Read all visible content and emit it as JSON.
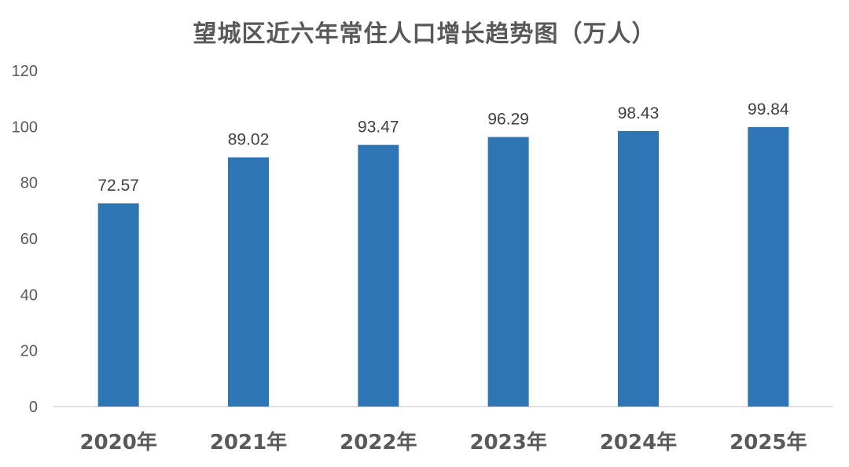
{
  "chart_data": {
    "type": "bar",
    "title": "望城区近六年常住人口增长趋势图（万人）",
    "categories": [
      "2020年",
      "2021年",
      "2022年",
      "2023年",
      "2024年",
      "2025年"
    ],
    "values": [
      72.57,
      89.02,
      93.47,
      96.29,
      98.43,
      99.84
    ],
    "data_labels": [
      "72.57",
      "89.02",
      "93.47",
      "96.29",
      "98.43",
      "99.84"
    ],
    "yticks": [
      0,
      20,
      40,
      60,
      80,
      100,
      120
    ],
    "ylim": [
      0,
      120
    ],
    "xlabel": "",
    "ylabel": "",
    "grid": false,
    "bar_color": "#2E75B6",
    "axis_color": "#D9D9D9"
  }
}
